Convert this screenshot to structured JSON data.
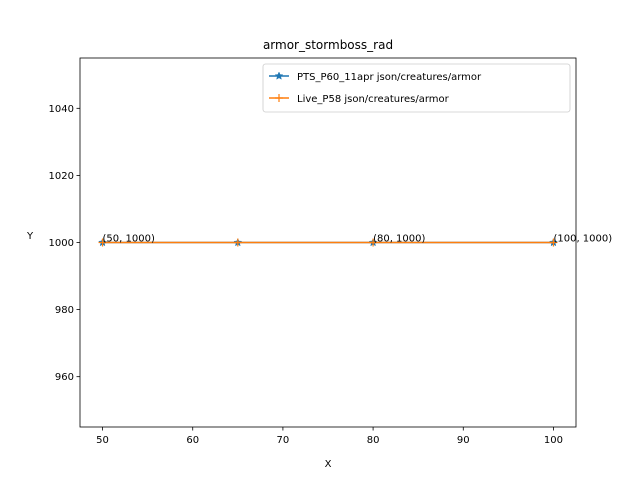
{
  "chart_data": {
    "type": "line",
    "title": "armor_stormboss_rad",
    "xlabel": "X",
    "ylabel": "Y",
    "xlim": [
      47.5,
      102.5
    ],
    "ylim": [
      945,
      1055
    ],
    "xticks": [
      50,
      60,
      70,
      80,
      90,
      100
    ],
    "yticks": [
      960,
      980,
      1000,
      1020,
      1040
    ],
    "grid": false,
    "legend_position": "top-right",
    "series": [
      {
        "name": "PTS_P60_11apr json/creatures/armor",
        "color": "#1f77b4",
        "marker": "star",
        "x": [
          50,
          65,
          80,
          100
        ],
        "y": [
          1000,
          1000,
          1000,
          1000
        ]
      },
      {
        "name": "Live_P58 json/creatures/armor",
        "color": "#ff7f0e",
        "marker": "plus",
        "x": [
          50,
          65,
          80,
          100
        ],
        "y": [
          1000,
          1000,
          1000,
          1000
        ]
      }
    ],
    "annotations": [
      {
        "text": "(50, 1000)",
        "x": 50,
        "y": 1000
      },
      {
        "text": "(80, 1000)",
        "x": 80,
        "y": 1000
      },
      {
        "text": "(100, 1000)",
        "x": 100,
        "y": 1000
      }
    ]
  }
}
